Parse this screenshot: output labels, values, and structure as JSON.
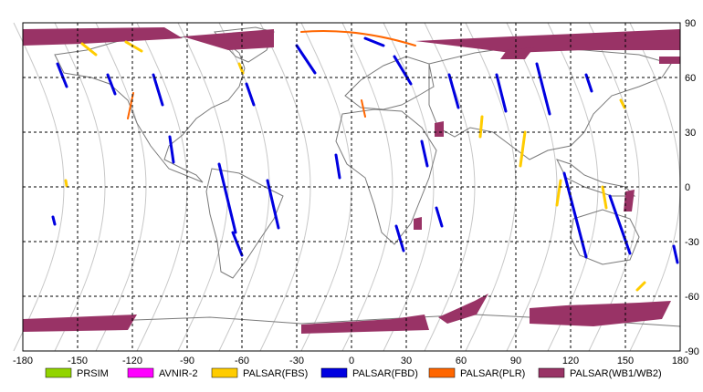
{
  "map": {
    "projection": "equirectangular",
    "lon_range": [
      -180,
      180
    ],
    "lat_range": [
      -90,
      90
    ],
    "grid": "dashed, every 30 degrees",
    "x_ticks": [
      "-180",
      "-150",
      "-120",
      "-90",
      "-60",
      "-30",
      "0",
      "30",
      "60",
      "90",
      "120",
      "150",
      "180"
    ],
    "y_ticks_right": [
      "90",
      "60",
      "30",
      "0",
      "-30",
      "-60",
      "-90"
    ],
    "colors": {
      "grid": "#000000",
      "coast": "#7a7a7a",
      "orbit": "#c8c8c8",
      "background": "#ffffff"
    }
  },
  "legend": [
    {
      "label": "PRSIM",
      "color": "#92d400"
    },
    {
      "label": "AVNIR-2",
      "color": "#ff00ff"
    },
    {
      "label": "PALSAR(FBS)",
      "color": "#ffcc00"
    },
    {
      "label": "PALSAR(FBD)",
      "color": "#0000e0"
    },
    {
      "label": "PALSAR(PLR)",
      "color": "#ff6600"
    },
    {
      "label": "PALSAR(WB1/WB2)",
      "color": "#993366"
    }
  ]
}
